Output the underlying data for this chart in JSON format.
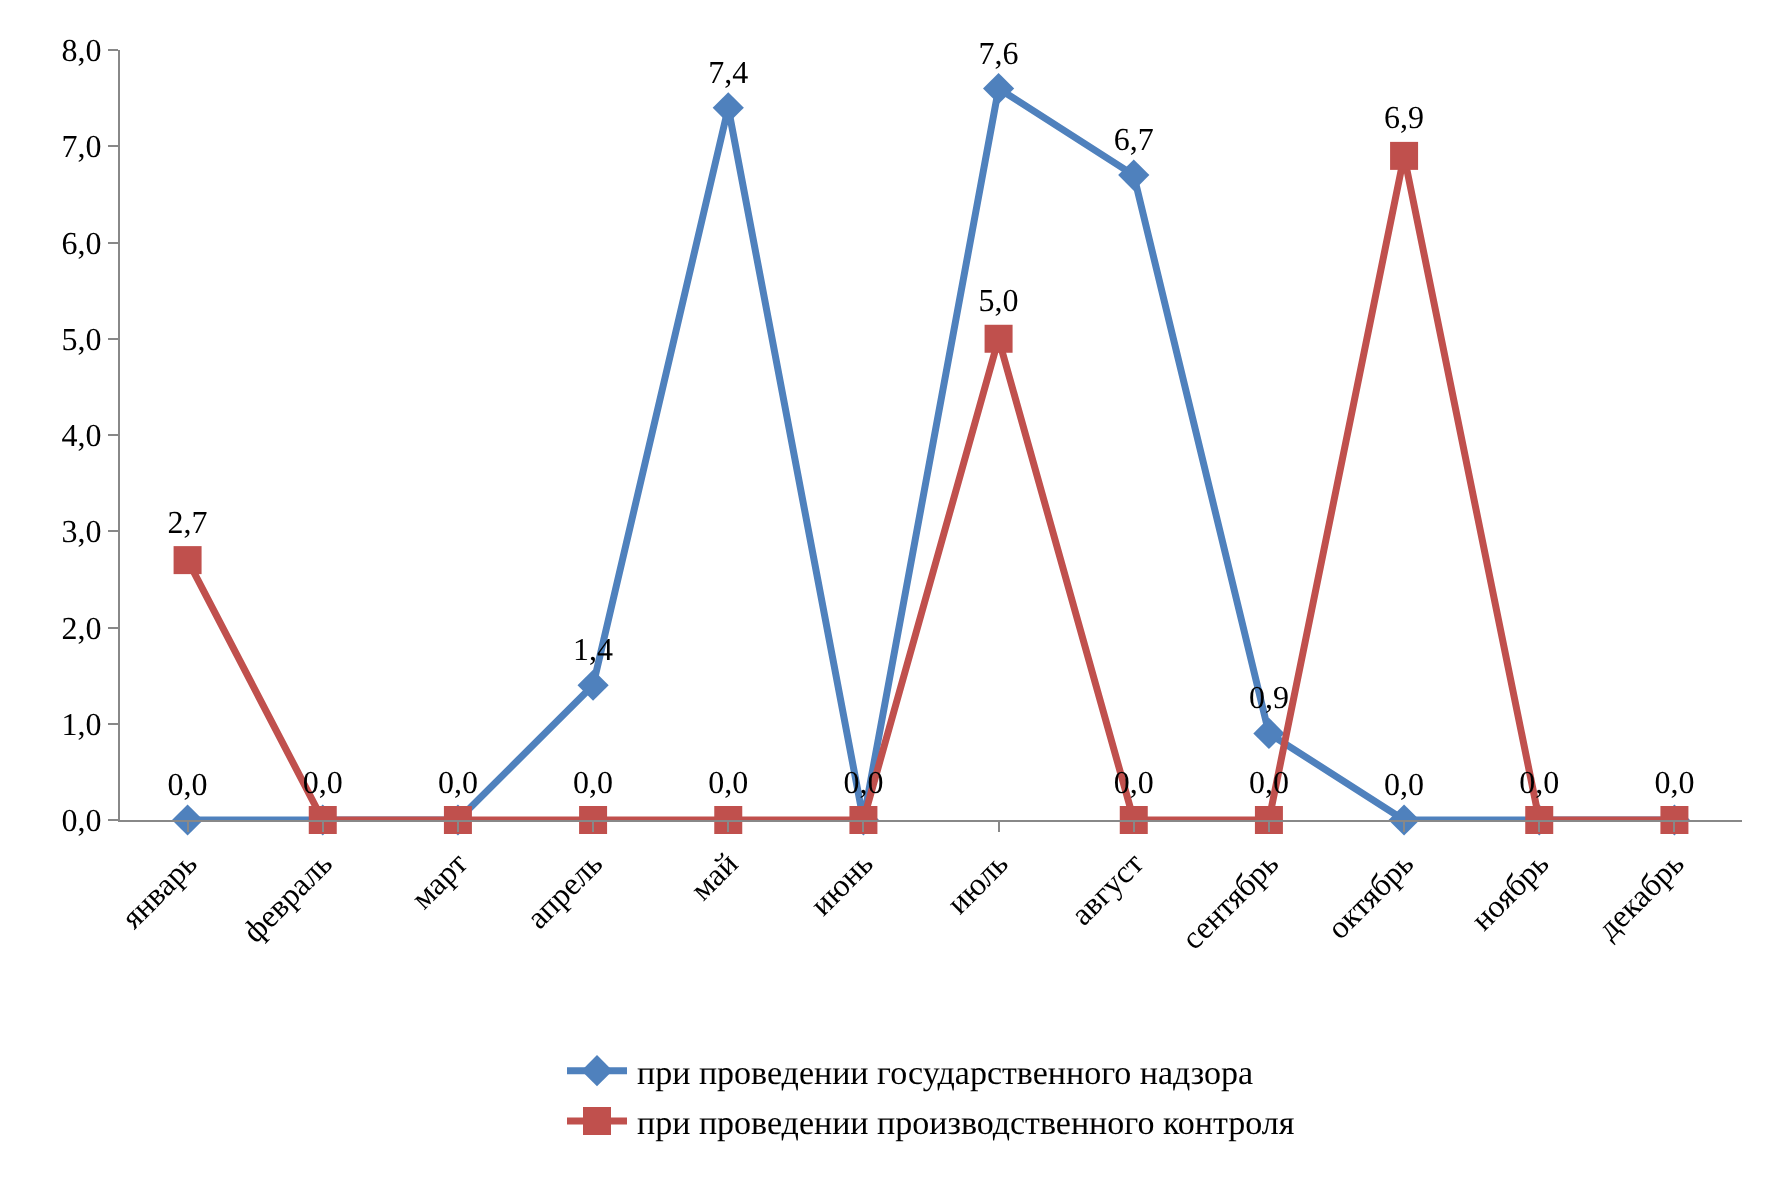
{
  "chart_data": {
    "type": "line",
    "categories": [
      "январь",
      "февраль",
      "март",
      "апрель",
      "май",
      "июнь",
      "июль",
      "август",
      "сентябрь",
      "октябрь",
      "ноябрь",
      "декабрь"
    ],
    "series": [
      {
        "name": "при проведении государственного надзора",
        "color": "#4f81bd",
        "marker": "diamond",
        "values": [
          0,
          0,
          0,
          1.4,
          7.4,
          0,
          7.6,
          6.7,
          0.9,
          0,
          0,
          0
        ],
        "value_labels": [
          "0,0",
          null,
          null,
          "1,4",
          "7,4",
          null,
          "7,6",
          "6,7",
          "0,9",
          "0,0",
          null,
          null
        ]
      },
      {
        "name": "при проведении производственного контроля",
        "color": "#c0504d",
        "marker": "square",
        "values": [
          2.7,
          0,
          0,
          0,
          0,
          0,
          5.0,
          0,
          0,
          6.9,
          0,
          0
        ],
        "value_labels": [
          "2,7",
          "0,0",
          "0,0",
          "0,0",
          "0,0",
          "0,0",
          "5,0",
          "0,0",
          "0,0",
          "6,9",
          "0,0",
          "0,0"
        ]
      }
    ],
    "ylim": [
      0,
      8
    ],
    "yticks": [
      {
        "value": 0,
        "label": "0,0"
      },
      {
        "value": 1,
        "label": "1,0"
      },
      {
        "value": 2,
        "label": "2,0"
      },
      {
        "value": 3,
        "label": "3,0"
      },
      {
        "value": 4,
        "label": "4,0"
      },
      {
        "value": 5,
        "label": "5,0"
      },
      {
        "value": 6,
        "label": "6,0"
      },
      {
        "value": 7,
        "label": "7,0"
      },
      {
        "value": 8,
        "label": "8,0"
      }
    ],
    "legend": "bottom",
    "line_style": "solid"
  }
}
